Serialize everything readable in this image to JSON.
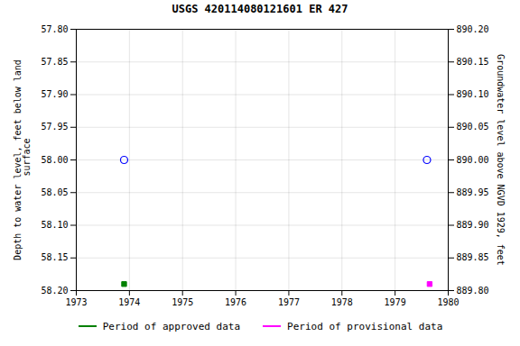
{
  "chart_data": {
    "type": "scatter",
    "title": "USGS 420114080121601 ER   427",
    "ylabel": "Depth to water level, feet below land\n surface",
    "y2label": "Groundwater level above NGVD 1929, feet",
    "xlim": [
      1973,
      1980
    ],
    "xticks": [
      1973,
      1974,
      1975,
      1976,
      1977,
      1978,
      1979,
      1980
    ],
    "ylim": [
      58.2,
      57.8
    ],
    "yticks": [
      {
        "value": 57.8,
        "label": "57.80"
      },
      {
        "value": 57.85,
        "label": "57.85"
      },
      {
        "value": 57.9,
        "label": "57.90"
      },
      {
        "value": 57.95,
        "label": "57.95"
      },
      {
        "value": 58.0,
        "label": "58.00"
      },
      {
        "value": 58.05,
        "label": "58.05"
      },
      {
        "value": 58.1,
        "label": "58.10"
      },
      {
        "value": 58.15,
        "label": "58.15"
      },
      {
        "value": 58.2,
        "label": "58.20"
      }
    ],
    "y2lim": [
      889.8,
      890.2
    ],
    "y2ticks": [
      {
        "value": 890.2,
        "label": "890.20"
      },
      {
        "value": 890.15,
        "label": "890.15"
      },
      {
        "value": 890.1,
        "label": "890.10"
      },
      {
        "value": 890.05,
        "label": "890.05"
      },
      {
        "value": 890.0,
        "label": "890.00"
      },
      {
        "value": 889.95,
        "label": "889.95"
      },
      {
        "value": 889.9,
        "label": "889.90"
      },
      {
        "value": 889.85,
        "label": "889.85"
      },
      {
        "value": 889.8,
        "label": "889.80"
      }
    ],
    "grid": true,
    "legend": "bottom",
    "series": [
      {
        "color": "#0000ff",
        "marker": "open_circle",
        "x": [
          1973.9,
          1979.6
        ],
        "values": [
          58.0,
          58.0
        ]
      },
      {
        "name": "Period of approved data",
        "color": "#008000",
        "marker": "square",
        "x": [
          1973.9
        ],
        "values": [
          58.19
        ]
      },
      {
        "name": "Period of provisional data",
        "color": "#ff00ff",
        "marker": "square",
        "x": [
          1979.65
        ],
        "values": [
          58.19
        ]
      }
    ]
  }
}
